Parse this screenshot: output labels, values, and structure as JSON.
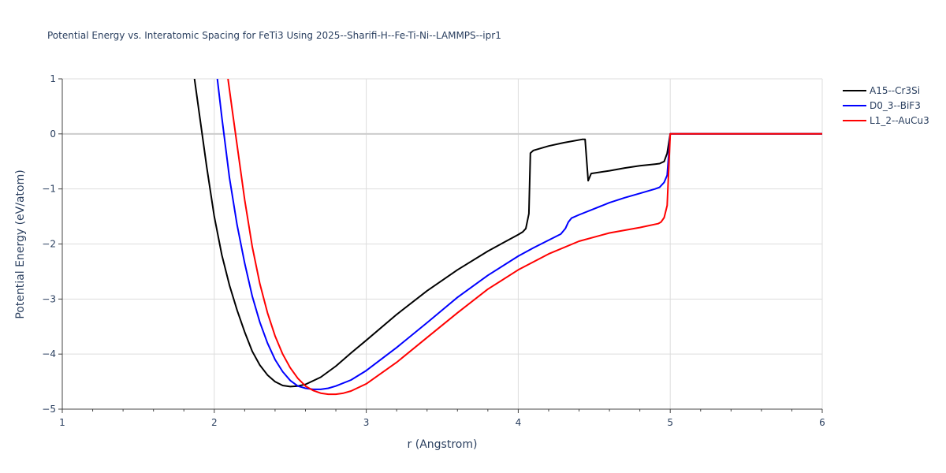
{
  "chart_data": {
    "type": "line",
    "title": "Potential Energy vs. Interatomic Spacing for FeTi3 Using 2025--Sharifi-H--Fe-Ti-Ni--LAMMPS--ipr1",
    "xlabel": "r (Angstrom)",
    "ylabel": "Potential Energy (eV/atom)",
    "xlim": [
      1,
      6
    ],
    "ylim": [
      -5,
      1
    ],
    "xticks": [
      1,
      2,
      3,
      4,
      5,
      6
    ],
    "yticks": [
      1,
      0,
      -1,
      -2,
      -3,
      -4,
      -5
    ],
    "xtick_labels": [
      "1",
      "2",
      "3",
      "4",
      "5",
      "6"
    ],
    "ytick_labels": [
      "1",
      "0",
      "−1",
      "−2",
      "−3",
      "−4",
      "−5"
    ],
    "grid": true,
    "legend_position": "top-right",
    "series": [
      {
        "name": "A15--Cr3Si",
        "color": "#000000",
        "x": [
          1.87,
          1.9,
          1.95,
          2.0,
          2.05,
          2.1,
          2.15,
          2.2,
          2.25,
          2.3,
          2.35,
          2.4,
          2.45,
          2.5,
          2.55,
          2.6,
          2.7,
          2.8,
          2.9,
          3.0,
          3.2,
          3.4,
          3.6,
          3.8,
          4.0,
          4.03,
          4.05,
          4.07,
          4.08,
          4.1,
          4.2,
          4.3,
          4.42,
          4.44,
          4.46,
          4.48,
          4.6,
          4.7,
          4.8,
          4.9,
          4.93,
          4.96,
          4.98,
          5.0,
          5.2,
          5.4,
          5.6,
          5.8,
          6.0
        ],
        "y": [
          1.0,
          0.4,
          -0.6,
          -1.5,
          -2.2,
          -2.75,
          -3.2,
          -3.6,
          -3.95,
          -4.2,
          -4.38,
          -4.5,
          -4.57,
          -4.59,
          -4.58,
          -4.55,
          -4.42,
          -4.22,
          -3.98,
          -3.75,
          -3.28,
          -2.85,
          -2.47,
          -2.13,
          -1.83,
          -1.78,
          -1.72,
          -1.45,
          -0.35,
          -0.3,
          -0.22,
          -0.16,
          -0.1,
          -0.1,
          -0.85,
          -0.72,
          -0.67,
          -0.62,
          -0.58,
          -0.55,
          -0.54,
          -0.5,
          -0.35,
          0.0,
          0.0,
          0.0,
          0.0,
          0.0,
          0.0
        ]
      },
      {
        "name": "D0_3--BiF3",
        "color": "#0000ff",
        "x": [
          2.02,
          2.05,
          2.1,
          2.15,
          2.2,
          2.25,
          2.3,
          2.35,
          2.4,
          2.45,
          2.5,
          2.55,
          2.6,
          2.65,
          2.7,
          2.75,
          2.8,
          2.9,
          3.0,
          3.2,
          3.4,
          3.6,
          3.8,
          4.0,
          4.1,
          4.2,
          4.28,
          4.31,
          4.33,
          4.35,
          4.4,
          4.5,
          4.6,
          4.7,
          4.8,
          4.9,
          4.93,
          4.96,
          4.98,
          5.0,
          5.2,
          5.4,
          5.6,
          5.8,
          6.0
        ],
        "y": [
          1.0,
          0.3,
          -0.8,
          -1.65,
          -2.35,
          -2.95,
          -3.42,
          -3.8,
          -4.1,
          -4.32,
          -4.48,
          -4.58,
          -4.62,
          -4.64,
          -4.64,
          -4.62,
          -4.58,
          -4.47,
          -4.3,
          -3.88,
          -3.43,
          -2.97,
          -2.57,
          -2.22,
          -2.07,
          -1.93,
          -1.82,
          -1.72,
          -1.6,
          -1.53,
          -1.47,
          -1.36,
          -1.25,
          -1.16,
          -1.08,
          -1.0,
          -0.97,
          -0.88,
          -0.75,
          0.0,
          0.0,
          0.0,
          0.0,
          0.0,
          0.0
        ]
      },
      {
        "name": "L1_2--AuCu3",
        "color": "#ff0000",
        "x": [
          2.09,
          2.12,
          2.15,
          2.2,
          2.25,
          2.3,
          2.35,
          2.4,
          2.45,
          2.5,
          2.55,
          2.6,
          2.65,
          2.7,
          2.75,
          2.8,
          2.85,
          2.9,
          3.0,
          3.2,
          3.4,
          3.6,
          3.8,
          4.0,
          4.2,
          4.4,
          4.6,
          4.8,
          4.92,
          4.94,
          4.96,
          4.98,
          5.0,
          5.2,
          5.4,
          5.6,
          5.8,
          6.0
        ],
        "y": [
          1.0,
          0.4,
          -0.2,
          -1.2,
          -2.05,
          -2.72,
          -3.25,
          -3.67,
          -4.0,
          -4.25,
          -4.44,
          -4.58,
          -4.66,
          -4.71,
          -4.73,
          -4.73,
          -4.71,
          -4.67,
          -4.54,
          -4.15,
          -3.7,
          -3.25,
          -2.82,
          -2.47,
          -2.18,
          -1.95,
          -1.8,
          -1.7,
          -1.63,
          -1.6,
          -1.52,
          -1.3,
          0.0,
          0.0,
          0.0,
          0.0,
          0.0,
          0.0
        ]
      }
    ]
  }
}
